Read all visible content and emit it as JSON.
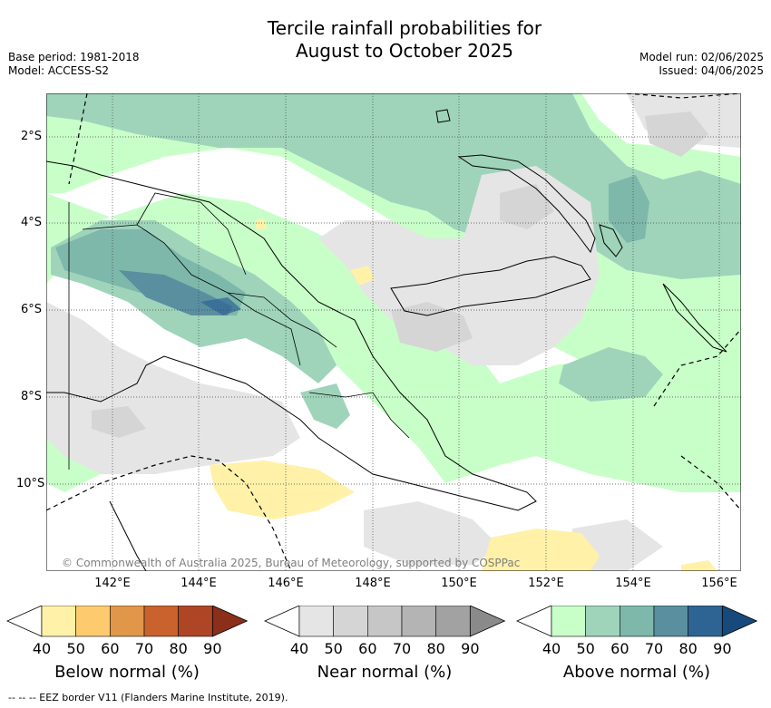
{
  "title_line1": "Tercile rainfall probabilities for",
  "title_line2": "August to October 2025",
  "base_period": "Base period: 1981-2018",
  "model": "Model: ACCESS-S2",
  "model_run": "Model run: 02/06/2025",
  "issued": "Issued: 04/06/2025",
  "lat_ticks": [
    "2°S",
    "4°S",
    "6°S",
    "8°S",
    "10°S"
  ],
  "lon_ticks": [
    "142°E",
    "144°E",
    "146°E",
    "148°E",
    "150°E",
    "152°E",
    "154°E",
    "156°E"
  ],
  "copyright": "© Commonwealth of Australia 2025, Bureau of Meteorology, supported by COSPPac",
  "colorbars": [
    {
      "title": "Below normal (%)",
      "labels": [
        "40",
        "50",
        "60",
        "70",
        "80",
        "90"
      ],
      "colors": [
        "#fff1a8",
        "#fdcb6e",
        "#e0974a",
        "#c9622d",
        "#ae4625",
        "#8b2f1a"
      ]
    },
    {
      "title": "Near normal (%)",
      "labels": [
        "40",
        "50",
        "60",
        "70",
        "80",
        "90"
      ],
      "colors": [
        "#e5e5e5",
        "#d5d5d5",
        "#c6c6c6",
        "#b4b4b4",
        "#a2a2a2",
        "#8a8a8a"
      ]
    },
    {
      "title": "Above normal (%)",
      "labels": [
        "40",
        "50",
        "60",
        "70",
        "80",
        "90"
      ],
      "colors": [
        "#c8ffc8",
        "#9fd4bb",
        "#7db8aa",
        "#5a8fa0",
        "#2e6494",
        "#174a7c"
      ]
    }
  ],
  "footer": "--  --  -- EEZ border V11 (Flanders Marine Institute, 2019)."
}
